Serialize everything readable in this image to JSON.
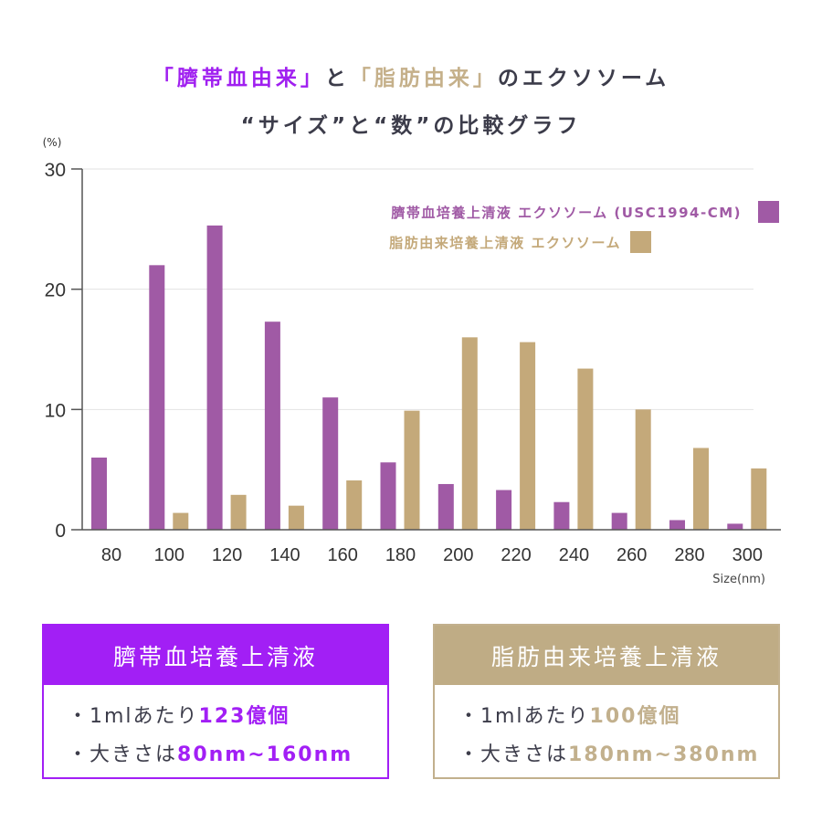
{
  "title": {
    "line1": [
      {
        "text": "「臍帯血由来」",
        "color": "purple"
      },
      {
        "text": "と",
        "color": "dark"
      },
      {
        "text": "「脂肪由来」",
        "color": "gold"
      },
      {
        "text": "のエクソソーム",
        "color": "dark"
      }
    ],
    "line2": "“サイズ”と“数”の比較グラフ"
  },
  "chart_data": {
    "type": "bar",
    "ylabel": "(%)",
    "xlabel": "Size(nm)",
    "ylim": [
      0,
      30
    ],
    "yticks": [
      "0",
      "10",
      "20",
      "30"
    ],
    "grid": true,
    "legend": "top-right",
    "categories": [
      "80",
      "100",
      "120",
      "140",
      "160",
      "180",
      "200",
      "220",
      "240",
      "260",
      "280",
      "300"
    ],
    "series": [
      {
        "name": "臍帯血培養上清液 エクソソーム (USC1994-CM)",
        "color": "#a05aa5",
        "values": [
          6.0,
          22.0,
          25.3,
          17.3,
          11.0,
          5.6,
          3.8,
          3.3,
          2.3,
          1.4,
          0.8,
          0.5
        ]
      },
      {
        "name": "脂肪由来培養上清液 エクソソーム",
        "color": "#c4a97a",
        "values": [
          0,
          1.4,
          2.9,
          2.0,
          4.1,
          9.9,
          16.0,
          15.6,
          13.4,
          10.0,
          6.8,
          5.1
        ]
      }
    ]
  },
  "boxes": [
    {
      "header": "臍帯血培養上清液",
      "line1_prefix": "・1mlあたり",
      "line1_value": "123億個",
      "line2_prefix": "・大きさは",
      "line2_value": "80nm~160nm",
      "color": "#a21ff5"
    },
    {
      "header": "脂肪由来培養上清液",
      "line1_prefix": "・1mlあたり",
      "line1_value": "100億個",
      "line2_prefix": "・大きさは",
      "line2_value": "180nm~380nm",
      "color": "#bfac85"
    }
  ]
}
